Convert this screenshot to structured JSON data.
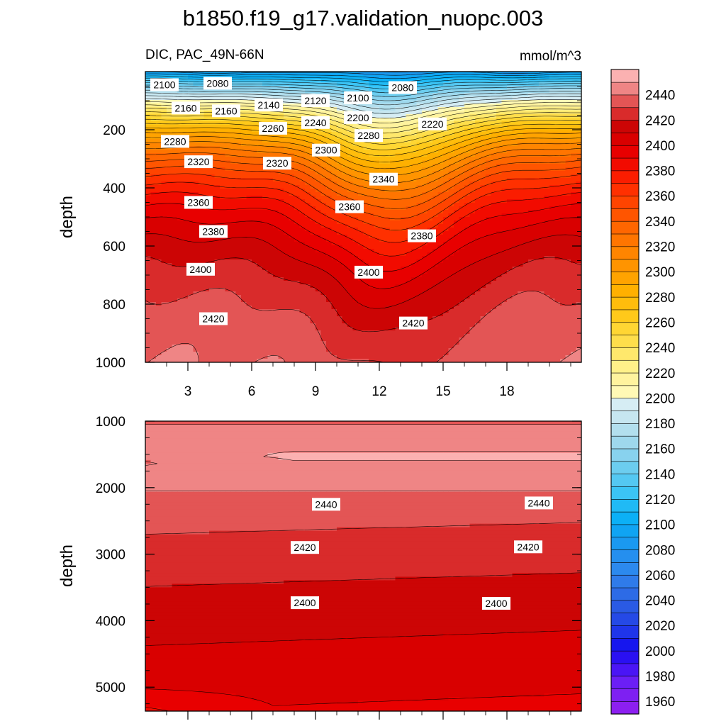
{
  "title": "b1850.f19_g17.validation_nuopc.003",
  "chart_data": [
    {
      "type": "contour",
      "panel": "upper",
      "left_title": "DIC, PAC_49N-66N",
      "right_title": "mmol/m^3",
      "ylabel": "depth",
      "ylim": [
        0,
        1000
      ],
      "y_inverted": true,
      "yticks": [
        200,
        400,
        600,
        800,
        1000
      ],
      "xlim": [
        1.0,
        21.5
      ],
      "xticks": [
        3,
        6,
        9,
        12,
        15,
        18
      ],
      "contour_labels": [
        {
          "text": "2100",
          "x": 1.9,
          "y": 45
        },
        {
          "text": "2080",
          "x": 4.4,
          "y": 40
        },
        {
          "text": "2160",
          "x": 2.9,
          "y": 125
        },
        {
          "text": "2160",
          "x": 4.8,
          "y": 135
        },
        {
          "text": "2140",
          "x": 6.8,
          "y": 115
        },
        {
          "text": "2120",
          "x": 9.0,
          "y": 100
        },
        {
          "text": "2100",
          "x": 11.0,
          "y": 90
        },
        {
          "text": "2080",
          "x": 13.1,
          "y": 55
        },
        {
          "text": "2200",
          "x": 11.0,
          "y": 158
        },
        {
          "text": "2220",
          "x": 14.5,
          "y": 180
        },
        {
          "text": "2240",
          "x": 9.0,
          "y": 175
        },
        {
          "text": "2260",
          "x": 7.0,
          "y": 195
        },
        {
          "text": "2280",
          "x": 2.4,
          "y": 240
        },
        {
          "text": "2280",
          "x": 11.5,
          "y": 220
        },
        {
          "text": "2300",
          "x": 9.5,
          "y": 270
        },
        {
          "text": "2320",
          "x": 3.5,
          "y": 310
        },
        {
          "text": "2320",
          "x": 7.2,
          "y": 315
        },
        {
          "text": "2340",
          "x": 12.2,
          "y": 370
        },
        {
          "text": "2360",
          "x": 3.5,
          "y": 450
        },
        {
          "text": "2360",
          "x": 10.6,
          "y": 465
        },
        {
          "text": "2380",
          "x": 4.2,
          "y": 550
        },
        {
          "text": "2380",
          "x": 14.0,
          "y": 565
        },
        {
          "text": "2400",
          "x": 3.6,
          "y": 680
        },
        {
          "text": "2400",
          "x": 11.5,
          "y": 690
        },
        {
          "text": "2420",
          "x": 4.2,
          "y": 850
        },
        {
          "text": "2420",
          "x": 13.6,
          "y": 865
        }
      ]
    },
    {
      "type": "contour",
      "panel": "lower",
      "ylabel": "depth",
      "ylim": [
        1000,
        5360
      ],
      "y_inverted": true,
      "yticks": [
        1000,
        2000,
        3000,
        4000,
        5000
      ],
      "xlim": [
        1.0,
        21.5
      ],
      "contour_labels": [
        {
          "text": "2440",
          "x": 9.5,
          "y": 2250
        },
        {
          "text": "2440",
          "x": 19.5,
          "y": 2230
        },
        {
          "text": "2420",
          "x": 8.5,
          "y": 2900
        },
        {
          "text": "2420",
          "x": 19.0,
          "y": 2890
        },
        {
          "text": "2400",
          "x": 8.5,
          "y": 3730
        },
        {
          "text": "2400",
          "x": 17.5,
          "y": 3740
        }
      ]
    }
  ],
  "colorbar": {
    "levels": [
      1950,
      1960,
      1970,
      1980,
      1990,
      2000,
      2010,
      2020,
      2030,
      2040,
      2050,
      2060,
      2070,
      2080,
      2090,
      2100,
      2110,
      2120,
      2130,
      2140,
      2150,
      2160,
      2170,
      2180,
      2190,
      2200,
      2210,
      2220,
      2230,
      2240,
      2250,
      2260,
      2270,
      2280,
      2290,
      2300,
      2310,
      2320,
      2330,
      2340,
      2350,
      2360,
      2370,
      2380,
      2390,
      2400,
      2410,
      2420,
      2430,
      2440,
      2450
    ],
    "labels": [
      "1960",
      "1980",
      "2000",
      "2020",
      "2040",
      "2060",
      "2080",
      "2100",
      "2120",
      "2140",
      "2160",
      "2180",
      "2200",
      "2220",
      "2240",
      "2260",
      "2280",
      "2300",
      "2320",
      "2340",
      "2360",
      "2380",
      "2400",
      "2420",
      "2440"
    ],
    "colors": [
      "#8c1ff0",
      "#7e20f2",
      "#6b1ff5",
      "#4a15f5",
      "#2a10f2",
      "#1616ee",
      "#1f35ea",
      "#2549e6",
      "#2a5ae4",
      "#2d6be6",
      "#2f7bea",
      "#2c89ee",
      "#258fef",
      "#1a99f0",
      "#10a4f3",
      "#0cb0f6",
      "#20baf5",
      "#3bc4f5",
      "#54c8f2",
      "#6ccdef",
      "#88d2ee",
      "#9ed8ed",
      "#b2dfee",
      "#c6e6f0",
      "#d6edf4",
      "#fff9b5",
      "#fff39e",
      "#fff089",
      "#ffe86c",
      "#ffde4b",
      "#ffd633",
      "#ffc91a",
      "#ffbd0c",
      "#ffb000",
      "#ffa300",
      "#ff9400",
      "#ff8500",
      "#ff7500",
      "#ff6600",
      "#ff5500",
      "#ff4400",
      "#ff3000",
      "#fa1d00",
      "#f20b00",
      "#e80000",
      "#d90000",
      "#cc0505",
      "#d92b2b",
      "#e35555",
      "#ef8585",
      "#fbb1b1"
    ]
  }
}
